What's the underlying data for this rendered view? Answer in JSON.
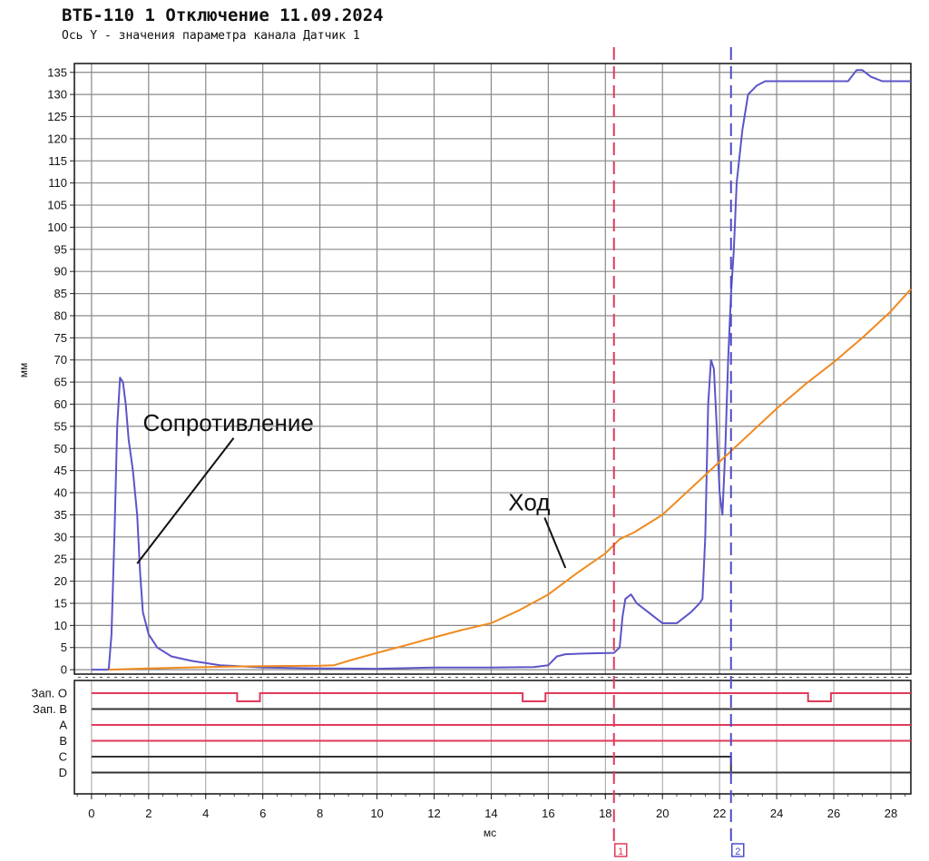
{
  "chart_data": {
    "type": "line",
    "title": "ВТБ-110 1 Отключение 11.09.2024",
    "subtitle": "Ось Y - значения параметра канала Датчик 1",
    "xlabel": "мс",
    "ylabel": "мм",
    "xlim": [
      -0.6,
      28.7
    ],
    "ylim": [
      -1,
      137
    ],
    "x_ticks": [
      0,
      2,
      4,
      6,
      8,
      10,
      12,
      14,
      16,
      18,
      20,
      22,
      24,
      26,
      28
    ],
    "y_ticks": [
      0,
      5,
      10,
      15,
      20,
      25,
      30,
      35,
      40,
      45,
      50,
      55,
      60,
      65,
      70,
      75,
      80,
      85,
      90,
      95,
      100,
      105,
      110,
      115,
      120,
      125,
      130,
      135
    ],
    "grid": true,
    "series": [
      {
        "name": "Сопротивление",
        "color": "#5b55c8",
        "points": [
          [
            0,
            0
          ],
          [
            0.6,
            0
          ],
          [
            0.7,
            8
          ],
          [
            0.8,
            30
          ],
          [
            0.9,
            55
          ],
          [
            1.0,
            66
          ],
          [
            1.1,
            65
          ],
          [
            1.2,
            60
          ],
          [
            1.3,
            52
          ],
          [
            1.45,
            45
          ],
          [
            1.6,
            35
          ],
          [
            1.7,
            22
          ],
          [
            1.8,
            13
          ],
          [
            2.0,
            8
          ],
          [
            2.3,
            5
          ],
          [
            2.8,
            3
          ],
          [
            3.5,
            2
          ],
          [
            4.5,
            1
          ],
          [
            6,
            0.5
          ],
          [
            8,
            0.3
          ],
          [
            10,
            0.2
          ],
          [
            12,
            0.5
          ],
          [
            14,
            0.5
          ],
          [
            15.5,
            0.6
          ],
          [
            16.0,
            1
          ],
          [
            16.3,
            3
          ],
          [
            16.6,
            3.5
          ],
          [
            17.5,
            3.7
          ],
          [
            18.3,
            3.8
          ],
          [
            18.5,
            5
          ],
          [
            18.6,
            12
          ],
          [
            18.7,
            16
          ],
          [
            18.9,
            17
          ],
          [
            19.1,
            15
          ],
          [
            19.5,
            13
          ],
          [
            20,
            10.5
          ],
          [
            20.5,
            10.5
          ],
          [
            21.0,
            13
          ],
          [
            21.3,
            15
          ],
          [
            21.4,
            16
          ],
          [
            21.5,
            30
          ],
          [
            21.6,
            60
          ],
          [
            21.7,
            70
          ],
          [
            21.8,
            68
          ],
          [
            21.9,
            55
          ],
          [
            22.0,
            40
          ],
          [
            22.1,
            35
          ],
          [
            22.2,
            50
          ],
          [
            22.3,
            70
          ],
          [
            22.4,
            85
          ],
          [
            22.5,
            95
          ],
          [
            22.6,
            110
          ],
          [
            22.8,
            122
          ],
          [
            23.0,
            130
          ],
          [
            23.3,
            132
          ],
          [
            23.6,
            133
          ],
          [
            24,
            133
          ],
          [
            25,
            133
          ],
          [
            26,
            133
          ],
          [
            26.5,
            133
          ],
          [
            26.8,
            135.5
          ],
          [
            27.0,
            135.5
          ],
          [
            27.3,
            134
          ],
          [
            27.7,
            133
          ],
          [
            28.2,
            133
          ],
          [
            28.7,
            133
          ]
        ]
      },
      {
        "name": "Ход",
        "color": "#f08a1f",
        "points": [
          [
            0.6,
            0
          ],
          [
            2,
            0.3
          ],
          [
            4,
            0.6
          ],
          [
            6,
            0.8
          ],
          [
            8,
            0.9
          ],
          [
            8.5,
            1
          ],
          [
            9,
            2
          ],
          [
            10,
            3.8
          ],
          [
            11,
            5.5
          ],
          [
            12,
            7.3
          ],
          [
            13,
            9
          ],
          [
            14,
            10.5
          ],
          [
            15,
            13.5
          ],
          [
            16,
            17
          ],
          [
            17,
            21.8
          ],
          [
            18,
            26.3
          ],
          [
            18.5,
            29.5
          ],
          [
            19,
            31
          ],
          [
            20,
            35
          ],
          [
            21,
            41
          ],
          [
            22,
            47
          ],
          [
            23,
            53
          ],
          [
            24,
            59
          ],
          [
            25,
            64.5
          ],
          [
            26,
            69.5
          ],
          [
            27,
            75
          ],
          [
            28,
            81
          ],
          [
            28.7,
            86
          ]
        ]
      }
    ],
    "annotations": [
      {
        "text": "Сопротивление",
        "at": [
          1.6,
          24
        ],
        "label_at": [
          1.8,
          54
        ]
      },
      {
        "text": "Ход",
        "at": [
          16.6,
          23
        ],
        "label_at": [
          14.6,
          36
        ]
      }
    ],
    "cursors": [
      {
        "label": "1",
        "x": 18.3,
        "color": "#e03a5a"
      },
      {
        "label": "2",
        "x": 22.4,
        "color": "#4c4cc8"
      }
    ],
    "digital_channels": [
      {
        "name": "Зап. O",
        "color": "#e03a5a",
        "dips": [
          [
            5.1,
            5.9
          ],
          [
            15.1,
            15.9
          ],
          [
            25.1,
            25.9
          ]
        ]
      },
      {
        "name": "Зап. B",
        "color": "#333333",
        "dips": []
      },
      {
        "name": "A",
        "color": "#e03a5a",
        "dips": []
      },
      {
        "name": "B",
        "color": "#e03a5a",
        "dips": []
      },
      {
        "name": "C",
        "color": "#333333",
        "drop_at": 22.4
      },
      {
        "name": "D",
        "color": "#333333",
        "dips": []
      }
    ]
  }
}
